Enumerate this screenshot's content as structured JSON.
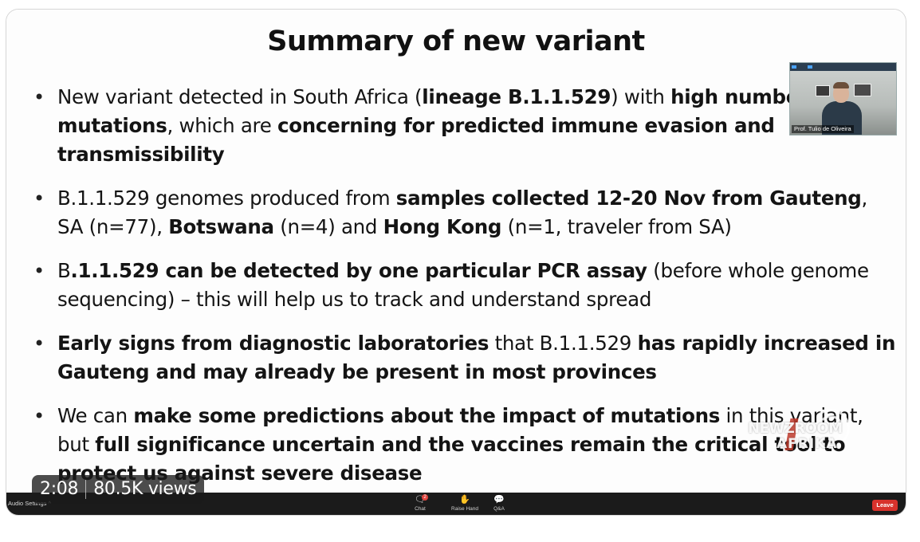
{
  "slide": {
    "title": "Summary of new variant",
    "bullets": [
      [
        {
          "t": "New variant detected in South Africa (",
          "b": false
        },
        {
          "t": "lineage B.1.1.529",
          "b": true
        },
        {
          "t": ") with ",
          "b": false
        },
        {
          "t": "high number of mutations",
          "b": true
        },
        {
          "t": ", which are ",
          "b": false
        },
        {
          "t": "concerning for predicted immune evasion and transmissibility",
          "b": true
        }
      ],
      [
        {
          "t": "B.1.1.529 genomes produced from ",
          "b": false
        },
        {
          "t": "samples collected 12-20 Nov from Gauteng",
          "b": true
        },
        {
          "t": ", SA (n=77), ",
          "b": false
        },
        {
          "t": "Botswana",
          "b": true
        },
        {
          "t": " (n=4) and ",
          "b": false
        },
        {
          "t": "Hong Kong",
          "b": true
        },
        {
          "t": " (n=1, traveler from SA)",
          "b": false
        }
      ],
      [
        {
          "t": "B",
          "b": false
        },
        {
          "t": ".1.1.529 can be detected by one particular PCR assay",
          "b": true
        },
        {
          "t": " (before whole genome sequencing) – this will help us to track and understand spread",
          "b": false
        }
      ],
      [
        {
          "t": "Early signs from diagnostic laboratories",
          "b": true
        },
        {
          "t": " that B.1.1.529 ",
          "b": false
        },
        {
          "t": "has rapidly increased in Gauteng and may already be present in most provinces",
          "b": true
        }
      ],
      [
        {
          "t": "We can ",
          "b": false
        },
        {
          "t": "make some predictions about the impact of mutations",
          "b": true
        },
        {
          "t": " in this variant, but ",
          "b": false
        },
        {
          "t": "full significance uncertain and the vaccines remain the critical tool to protect us against severe disease",
          "b": true
        }
      ]
    ]
  },
  "webcam": {
    "participant_name": "Prof. Tulio de Oliveira"
  },
  "watermark": {
    "line1": "NEWZROOM",
    "line2": "AFRIKA"
  },
  "video": {
    "elapsed": "2:08",
    "views": "80.5K views"
  },
  "toolbar": {
    "audio_settings": "Audio Settings ^",
    "chat_label": "Chat",
    "chat_badge": "2",
    "raise_hand_label": "Raise Hand",
    "qa_label": "Q&A",
    "leave_label": "Leave"
  },
  "icons": {
    "chat": "chat-bubble",
    "raise_hand": "hand",
    "qa": "qa-bubbles"
  },
  "colors": {
    "leave": "#d8322c",
    "toolbar_bg": "#1b1b1b"
  }
}
